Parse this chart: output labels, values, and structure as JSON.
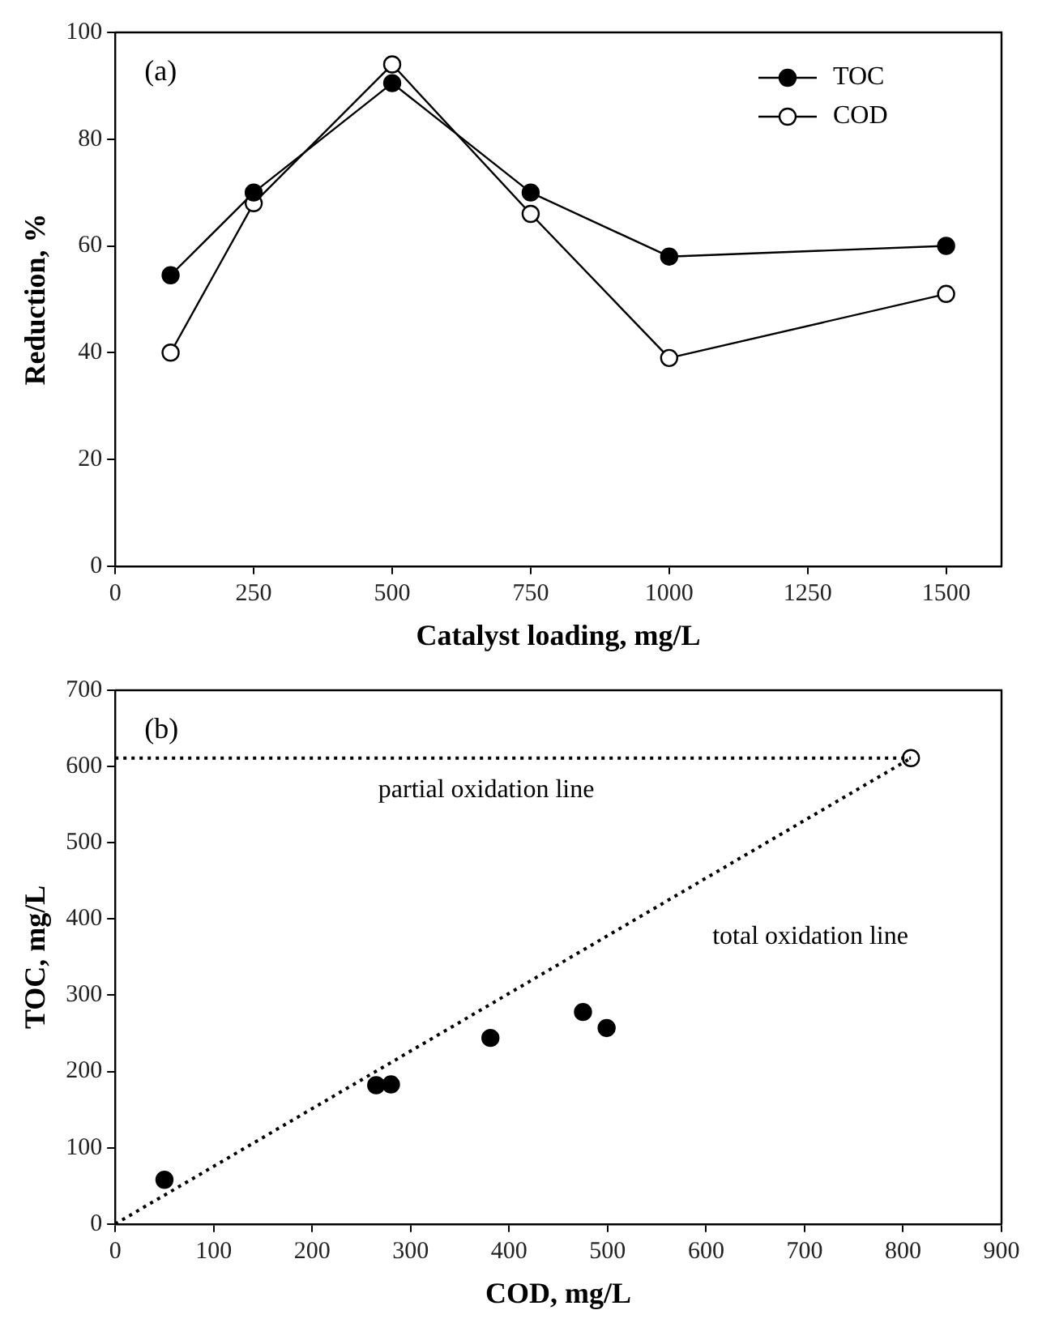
{
  "chart_data": [
    {
      "type": "line",
      "xlabel": "Catalyst loading, mg/L",
      "ylabel": "Reduction, %",
      "annotations": [
        "(a)"
      ],
      "x": [
        100,
        250,
        500,
        750,
        1000,
        1500
      ],
      "xlim": [
        0,
        1600
      ],
      "xticks": [
        0,
        250,
        500,
        750,
        1000,
        1250,
        1500
      ],
      "ylim": [
        0,
        100
      ],
      "yticks": [
        0,
        20,
        40,
        60,
        80,
        100
      ],
      "grid": false,
      "legend": "top right",
      "marker": "circle",
      "line_style": "solid",
      "series": [
        {
          "name": "TOC",
          "color": "#000000",
          "values": [
            54.5,
            70,
            90.5,
            70,
            58,
            60
          ]
        },
        {
          "name": "COD",
          "color": "#ffffff",
          "values": [
            40,
            68,
            94,
            66,
            39,
            51
          ]
        }
      ]
    },
    {
      "type": "scatter",
      "xlabel": "COD, mg/L",
      "ylabel": "TOC, mg/L",
      "annotations": [
        "(b)"
      ],
      "xlim": [
        0,
        900
      ],
      "xticks": [
        0,
        100,
        200,
        300,
        400,
        500,
        600,
        700,
        800,
        900
      ],
      "ylim": [
        0,
        700
      ],
      "yticks": [
        0,
        100,
        200,
        300,
        400,
        500,
        600,
        700
      ],
      "grid": false,
      "legend": false,
      "marker": "circle",
      "series": [
        {
          "type": "line",
          "name": "partial oxidation line",
          "color": "#000000",
          "marker": "none",
          "line_style": "dotted",
          "x": [
            0,
            808
          ],
          "values": [
            611,
            611
          ]
        },
        {
          "type": "line",
          "name": "total oxidation line",
          "color": "#000000",
          "marker": "none",
          "line_style": "dotted",
          "x": [
            0,
            808
          ],
          "values": [
            0,
            611
          ]
        },
        {
          "color": "#000000",
          "x": [
            50,
            265,
            280,
            381,
            475,
            499
          ],
          "values": [
            58,
            182,
            183,
            244,
            278,
            257
          ]
        },
        {
          "color": "#ffffff",
          "x": [
            808
          ],
          "values": [
            611
          ]
        }
      ]
    }
  ]
}
